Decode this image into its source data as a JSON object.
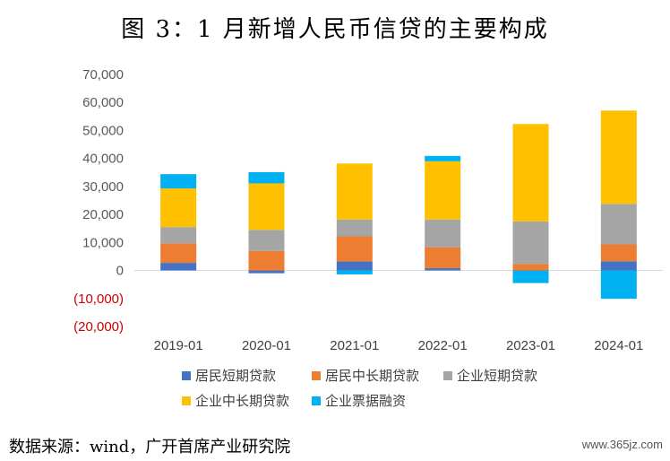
{
  "chart_data": {
    "type": "bar",
    "stacked": true,
    "title": "图 3：1 月新增人民币信贷的主要构成",
    "categories": [
      "2019-01",
      "2020-01",
      "2021-01",
      "2022-01",
      "2023-01",
      "2024-01"
    ],
    "ylim": [
      -20000,
      70000
    ],
    "yticks": [
      70000,
      60000,
      50000,
      40000,
      30000,
      20000,
      10000,
      0,
      -10000,
      -20000
    ],
    "ytick_labels": [
      "70,000",
      "60,000",
      "50,000",
      "40,000",
      "30,000",
      "20,000",
      "10,000",
      "0",
      "(10,000)",
      "(20,000)"
    ],
    "negative_tick_color": "#cc0000",
    "series": [
      {
        "name": "居民短期贷款",
        "color": "#4472c4",
        "values": [
          2700,
          -1000,
          3200,
          800,
          -100,
          3300
        ]
      },
      {
        "name": "居民中长期贷款",
        "color": "#ed7d31",
        "values": [
          7000,
          7000,
          9000,
          7500,
          2300,
          6000
        ]
      },
      {
        "name": "企业短期贷款",
        "color": "#a5a5a5",
        "values": [
          5800,
          7500,
          6000,
          9900,
          15200,
          14500
        ]
      },
      {
        "name": "企业中长期贷款",
        "color": "#ffc000",
        "values": [
          13800,
          16600,
          20000,
          20800,
          34800,
          33300
        ]
      },
      {
        "name": "企业票据融资",
        "color": "#00b0f0",
        "values": [
          5100,
          4000,
          -1400,
          1900,
          -4400,
          -10100
        ]
      }
    ],
    "legend_position": "bottom"
  },
  "source": "数据来源：wind，广开首席产业研究院",
  "watermark": "www.365jz.com"
}
